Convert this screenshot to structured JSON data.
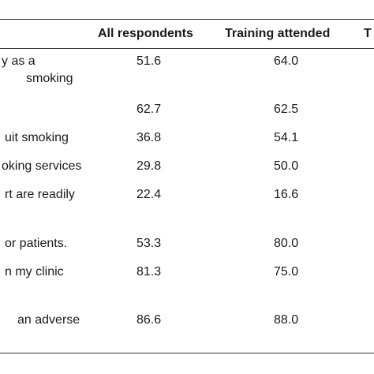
{
  "table": {
    "headers": {
      "statement": "",
      "all": "All respondents",
      "training": "Training attended",
      "third": "T"
    },
    "rows": [
      {
        "statement_lines": [
          "y as a",
          "smoking"
        ],
        "all": "51.6",
        "training": "64.0"
      },
      {
        "statement_lines": [
          ""
        ],
        "all": "62.7",
        "training": "62.5"
      },
      {
        "statement_lines": [
          "uit smoking"
        ],
        "all": "36.8",
        "training": "54.1"
      },
      {
        "statement_lines": [
          "oking services"
        ],
        "all": "29.8",
        "training": "50.0"
      },
      {
        "statement_lines": [
          "rt are readily"
        ],
        "all": "22.4",
        "training": "16.6"
      },
      {
        "statement_lines": [
          "or patients."
        ],
        "all": "53.3",
        "training": "80.0"
      },
      {
        "statement_lines": [
          "n my clinic"
        ],
        "all": "81.3",
        "training": "75.0"
      },
      {
        "statement_lines": [
          "an adverse"
        ],
        "all": "86.6",
        "training": "88.0"
      }
    ]
  }
}
